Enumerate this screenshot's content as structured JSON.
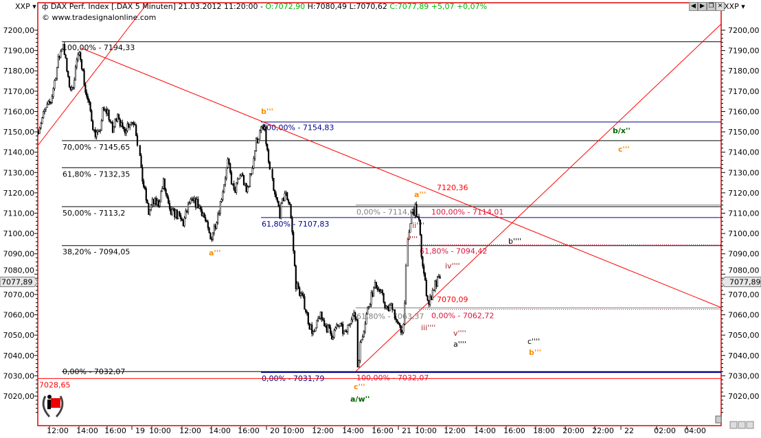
{
  "header": {
    "axis_left_label": "XXP",
    "axis_right_label": "XXP",
    "instrument": "DAX Perf. Index [.DAX  5 Minuten] 21.03.2012 11:20:00 -",
    "open": "O:7072,90",
    "high": "H:7080,49",
    "low": "L:7070,62",
    "close_change": "C:7077,89 +5,07 +0,07%",
    "copyright": "© www.tradesignalonline.com"
  },
  "window_buttons": [
    "prev-icon",
    "next-icon",
    "restore-icon",
    "close-icon"
  ],
  "colors": {
    "frame": "#e00000",
    "up": "#ffffff",
    "down": "#000000",
    "fib_black": "#000000",
    "fib_blue": "#00008b",
    "fib_gray": "#808080",
    "fib_red": "#dc143c",
    "trend": "#ff0000",
    "orange": "#ff8c00",
    "green": "#006400",
    "darkred": "#a52a2a"
  },
  "chart_data": {
    "type": "candlestick",
    "title": "DAX Perf. Index [.DAX  5 Minuten]",
    "ylim": [
      7010,
      7210
    ],
    "yticks": [
      "7200,00",
      "7190,00",
      "7180,00",
      "7170,00",
      "7160,00",
      "7150,00",
      "7140,00",
      "7130,00",
      "7120,00",
      "7110,00",
      "7100,00",
      "7090,00",
      "7080,00",
      "7070,00",
      "7060,00",
      "7050,00",
      "7040,00",
      "7030,00",
      "7020,00"
    ],
    "xticks": [
      "12:00",
      "14:00",
      "16:00",
      "19",
      "10:00",
      "12:00",
      "14:00",
      "16:00",
      "20",
      "10:00",
      "12:00",
      "14:00",
      "16:00",
      "21",
      "10:00",
      "12:00",
      "14:00",
      "16:00",
      "18:00",
      "20:00",
      "22:00",
      "22",
      "02:00",
      "04:00"
    ],
    "last_price": "7077,89",
    "price_path_bar_index_price": [
      [
        0,
        7150
      ],
      [
        6,
        7160
      ],
      [
        11,
        7165
      ],
      [
        17,
        7185
      ],
      [
        21,
        7194
      ],
      [
        25,
        7175
      ],
      [
        28,
        7170
      ],
      [
        32,
        7185
      ],
      [
        35,
        7188
      ],
      [
        39,
        7170
      ],
      [
        43,
        7160
      ],
      [
        46,
        7150
      ],
      [
        50,
        7148
      ],
      [
        53,
        7160
      ],
      [
        57,
        7160
      ],
      [
        61,
        7150
      ],
      [
        65,
        7160
      ],
      [
        69,
        7150
      ],
      [
        75,
        7155
      ],
      [
        79,
        7155
      ],
      [
        81,
        7145
      ],
      [
        83,
        7130
      ],
      [
        86,
        7120
      ],
      [
        89,
        7110
      ],
      [
        92,
        7115
      ],
      [
        97,
        7115
      ],
      [
        101,
        7125
      ],
      [
        106,
        7110
      ],
      [
        111,
        7110
      ],
      [
        117,
        7105
      ],
      [
        122,
        7115
      ],
      [
        128,
        7115
      ],
      [
        133,
        7110
      ],
      [
        139,
        7097
      ],
      [
        143,
        7105
      ],
      [
        147,
        7115
      ],
      [
        153,
        7135
      ],
      [
        158,
        7120
      ],
      [
        164,
        7130
      ],
      [
        168,
        7120
      ],
      [
        172,
        7130
      ],
      [
        176,
        7145
      ],
      [
        181,
        7152
      ],
      [
        183,
        7150
      ],
      [
        189,
        7120
      ],
      [
        192,
        7115
      ],
      [
        194,
        7110
      ],
      [
        198,
        7120
      ],
      [
        202,
        7115
      ],
      [
        204,
        7100
      ],
      [
        207,
        7075
      ],
      [
        211,
        7070
      ],
      [
        214,
        7065
      ],
      [
        218,
        7055
      ],
      [
        222,
        7050
      ],
      [
        226,
        7060
      ],
      [
        231,
        7055
      ],
      [
        236,
        7050
      ],
      [
        242,
        7055
      ],
      [
        247,
        7050
      ],
      [
        252,
        7060
      ],
      [
        256,
        7058
      ],
      [
        257,
        7035
      ],
      [
        259,
        7045
      ],
      [
        264,
        7060
      ],
      [
        268,
        7070
      ],
      [
        272,
        7075
      ],
      [
        276,
        7070
      ],
      [
        281,
        7062
      ],
      [
        285,
        7065
      ],
      [
        289,
        7055
      ],
      [
        292,
        7052
      ],
      [
        294,
        7055
      ],
      [
        297,
        7095
      ],
      [
        300,
        7110
      ],
      [
        303,
        7112
      ],
      [
        306,
        7105
      ],
      [
        308,
        7090
      ],
      [
        311,
        7075
      ],
      [
        314,
        7065
      ],
      [
        317,
        7072
      ],
      [
        319,
        7075
      ],
      [
        323,
        7077.89
      ]
    ],
    "levels": [
      {
        "price": 7194.33,
        "label": "100,00% - 7194,33",
        "style": "fib_black",
        "from": "day1"
      },
      {
        "price": 7154.83,
        "label": "100,00% - 7154,83",
        "style": "fib_blue",
        "from": "day3"
      },
      {
        "price": 7145.65,
        "label": "70,00% - 7145,65",
        "style": "fib_black",
        "from": "day1"
      },
      {
        "price": 7132.35,
        "label": "61,80% - 7132,35",
        "style": "fib_black",
        "from": "day1"
      },
      {
        "price": 7114.01,
        "label": "0,00% - 7114,01",
        "style": "fib_gray",
        "from": "day3b"
      },
      {
        "price": 7113.2,
        "label": "50,00% - 7113,2",
        "style": "fib_black",
        "from": "day1"
      },
      {
        "price": 7114.01,
        "label": "100,00% - 7114,01",
        "style": "fib_red_label",
        "from": "day4"
      },
      {
        "price": 7107.83,
        "label": "61,80% - 7107,83",
        "style": "fib_blue",
        "from": "day3"
      },
      {
        "price": 7094.42,
        "label": "61,80% - 7094,42",
        "style": "fib_red",
        "from": "day4"
      },
      {
        "price": 7094.05,
        "label": "38,20% - 7094,05",
        "style": "fib_black",
        "from": "day1"
      },
      {
        "price": 7063.37,
        "label": "61,80% - 7063,37",
        "style": "fib_gray",
        "from": "day3b"
      },
      {
        "price": 7062.72,
        "label": "0,00% - 7062,72",
        "style": "fib_red",
        "from": "day4"
      },
      {
        "price": 7032.07,
        "label": "0,00% - 7032,07",
        "style": "fib_black",
        "from": "day1"
      },
      {
        "price": 7031.79,
        "label": "0,00% - 7031,79",
        "style": "fib_blue_thick",
        "from": "day3"
      },
      {
        "price": 7032.07,
        "label": "100,00% - 7032,07",
        "style": "fib_red_label",
        "from": "day3b"
      },
      {
        "price": 7028.65,
        "label": "7028,65",
        "style": "trend",
        "from": "start"
      }
    ],
    "trendline_labels": [
      "7120,36",
      "7070,09"
    ],
    "wave_labels": [
      {
        "text": "b'''",
        "color": "orange"
      },
      {
        "text": "a'''",
        "color": "orange"
      },
      {
        "text": "a'''",
        "color": "orange"
      },
      {
        "text": "c'''",
        "color": "orange"
      },
      {
        "text": "c'''",
        "color": "orange"
      },
      {
        "text": "b'''",
        "color": "orange"
      },
      {
        "text": "b/x''",
        "color": "green"
      },
      {
        "text": "a/w''",
        "color": "green"
      },
      {
        "text": "i''''",
        "color": "darkred"
      },
      {
        "text": "ii''''",
        "color": "darkred"
      },
      {
        "text": "iii''''",
        "color": "darkred"
      },
      {
        "text": "iv''''",
        "color": "darkred"
      },
      {
        "text": "v''''",
        "color": "darkred"
      },
      {
        "text": "a''''",
        "color": "black"
      },
      {
        "text": "b''''",
        "color": "black"
      },
      {
        "text": "c''''",
        "color": "black"
      }
    ]
  }
}
